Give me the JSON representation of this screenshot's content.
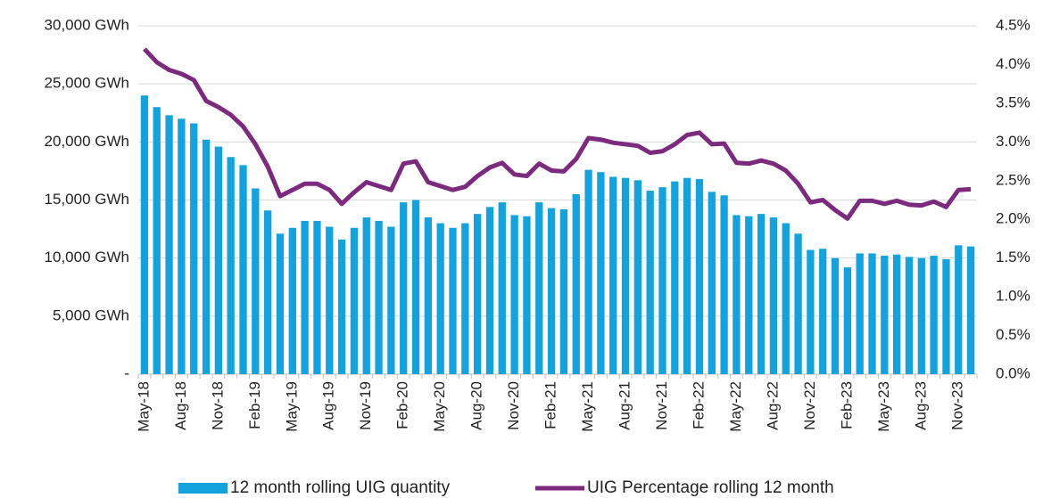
{
  "chart_data": {
    "type": "combo",
    "categories": [
      "May-18",
      null,
      null,
      "Aug-18",
      null,
      null,
      "Nov-18",
      null,
      null,
      "Feb-19",
      null,
      null,
      "May-19",
      null,
      null,
      "Aug-19",
      null,
      null,
      "Nov-19",
      null,
      null,
      "Feb-20",
      null,
      null,
      "May-20",
      null,
      null,
      "Aug-20",
      null,
      null,
      "Nov-20",
      null,
      null,
      "Feb-21",
      null,
      null,
      "May-21",
      null,
      null,
      "Aug-21",
      null,
      null,
      "Nov-21",
      null,
      null,
      "Feb-22",
      null,
      null,
      "May-22",
      null,
      null,
      "Aug-22",
      null,
      null,
      "Nov-22",
      null,
      null,
      "Feb-23",
      null,
      null,
      "May-23",
      null,
      null,
      "Aug-23",
      null,
      null,
      "Nov-23",
      null
    ],
    "series": [
      {
        "name": "12 month rolling UIG quantity",
        "type": "bar",
        "color": "#12a3de",
        "axis": "y",
        "values": [
          24000,
          23000,
          22300,
          22000,
          21600,
          20200,
          19600,
          18700,
          18000,
          16000,
          14100,
          12100,
          12600,
          13200,
          13200,
          12700,
          11600,
          12600,
          13500,
          13200,
          12700,
          14800,
          15000,
          13500,
          13000,
          12600,
          13000,
          13800,
          14400,
          14800,
          13700,
          13600,
          14800,
          14300,
          14200,
          15500,
          17600,
          17400,
          17000,
          16900,
          16700,
          15800,
          16100,
          16600,
          16900,
          16800,
          15700,
          15400,
          13700,
          13600,
          13800,
          13500,
          13000,
          12100,
          10700,
          10800,
          10000,
          9200,
          10400,
          10400,
          10200,
          10300,
          10100,
          10000,
          10200,
          9900,
          11100,
          11000
        ]
      },
      {
        "name": "UIG Percentage rolling 12 month",
        "type": "line",
        "color": "#7b2a7e",
        "axis": "y2",
        "values": [
          4.2,
          4.03,
          3.93,
          3.88,
          3.8,
          3.53,
          3.45,
          3.35,
          3.2,
          2.97,
          2.68,
          2.3,
          2.38,
          2.46,
          2.46,
          2.38,
          2.2,
          2.35,
          2.48,
          2.43,
          2.38,
          2.72,
          2.75,
          2.48,
          2.43,
          2.38,
          2.42,
          2.56,
          2.67,
          2.73,
          2.58,
          2.56,
          2.72,
          2.63,
          2.62,
          2.78,
          3.05,
          3.03,
          2.99,
          2.97,
          2.95,
          2.86,
          2.88,
          2.97,
          3.09,
          3.12,
          2.97,
          2.98,
          2.73,
          2.72,
          2.76,
          2.72,
          2.63,
          2.46,
          2.22,
          2.25,
          2.12,
          2.01,
          2.24,
          2.24,
          2.2,
          2.24,
          2.19,
          2.18,
          2.23,
          2.16,
          2.38,
          2.39
        ]
      }
    ],
    "ylim": [
      0,
      30000
    ],
    "yticks": [
      {
        "value": 0,
        "label": "-"
      },
      {
        "value": 5000,
        "label": "5,000 GWh"
      },
      {
        "value": 10000,
        "label": "10,000 GWh"
      },
      {
        "value": 15000,
        "label": "15,000 GWh"
      },
      {
        "value": 20000,
        "label": "20,000 GWh"
      },
      {
        "value": 25000,
        "label": "25,000 GWh"
      },
      {
        "value": 30000,
        "label": "30,000 GWh"
      }
    ],
    "y2lim": [
      0,
      4.5
    ],
    "y2ticks": [
      {
        "value": 0,
        "label": "0.0%"
      },
      {
        "value": 0.5,
        "label": "0.5%"
      },
      {
        "value": 1,
        "label": "1.0%"
      },
      {
        "value": 1.5,
        "label": "1.5%"
      },
      {
        "value": 2,
        "label": "2.0%"
      },
      {
        "value": 2.5,
        "label": "2.5%"
      },
      {
        "value": 3,
        "label": "3.0%"
      },
      {
        "value": 3.5,
        "label": "3.5%"
      },
      {
        "value": 4,
        "label": "4.0%"
      },
      {
        "value": 4.5,
        "label": "4.5%"
      }
    ],
    "grid": true,
    "legend": "bottom"
  }
}
